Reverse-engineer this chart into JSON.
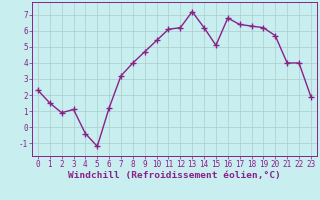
{
  "x": [
    0,
    1,
    2,
    3,
    4,
    5,
    6,
    7,
    8,
    9,
    10,
    11,
    12,
    13,
    14,
    15,
    16,
    17,
    18,
    19,
    20,
    21,
    22,
    23
  ],
  "y": [
    2.3,
    1.5,
    0.9,
    1.1,
    -0.4,
    -1.2,
    1.2,
    3.2,
    4.0,
    4.7,
    5.4,
    6.1,
    6.2,
    7.2,
    6.2,
    5.1,
    6.8,
    6.4,
    6.3,
    6.2,
    5.7,
    4.0,
    4.0,
    1.9
  ],
  "line_color": "#882288",
  "marker": "+",
  "bg_color": "#c8eef0",
  "grid_color": "#aacccc",
  "xlabel": "Windchill (Refroidissement éolien,°C)",
  "ylim": [
    -1.8,
    7.8
  ],
  "xlim": [
    -0.5,
    23.5
  ],
  "yticks": [
    -1,
    0,
    1,
    2,
    3,
    4,
    5,
    6,
    7
  ],
  "xticks": [
    0,
    1,
    2,
    3,
    4,
    5,
    6,
    7,
    8,
    9,
    10,
    11,
    12,
    13,
    14,
    15,
    16,
    17,
    18,
    19,
    20,
    21,
    22,
    23
  ],
  "axis_color": "#882288",
  "tick_label_color": "#882288",
  "xlabel_color": "#882288",
  "line_width": 1.0,
  "marker_size": 4,
  "marker_edge_width": 1.0,
  "font_size_ticks": 5.5,
  "font_size_xlabel": 6.8
}
